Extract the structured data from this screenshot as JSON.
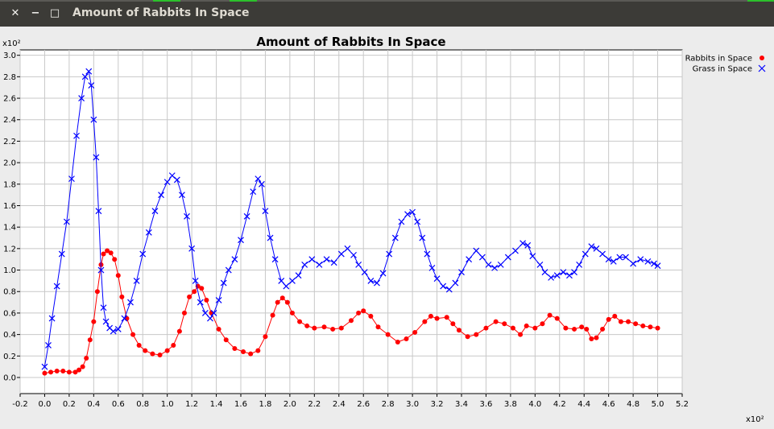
{
  "window": {
    "title": "Amount of Rabbits In Space",
    "close_glyph": "✕",
    "minimize_glyph": "−",
    "maximize_glyph": "□"
  },
  "chart_data": {
    "type": "line",
    "title": "Amount of Rabbits In Space",
    "x_multiplier_label": "x10²",
    "y_multiplier_label": "x10²",
    "xlim": [
      -0.2,
      5.2
    ],
    "ylim": [
      -0.15,
      3.05
    ],
    "xticks": [
      "-0.2",
      "0.0",
      "0.2",
      "0.4",
      "0.6",
      "0.8",
      "1.0",
      "1.2",
      "1.4",
      "1.6",
      "1.8",
      "2.0",
      "2.2",
      "2.4",
      "2.6",
      "2.8",
      "3.0",
      "3.2",
      "3.4",
      "3.6",
      "3.8",
      "4.0",
      "4.2",
      "4.4",
      "4.6",
      "4.8",
      "5.0",
      "5.2"
    ],
    "yticks": [
      "0.0",
      "0.2",
      "0.4",
      "0.6",
      "0.8",
      "1.0",
      "1.2",
      "1.4",
      "1.6",
      "1.8",
      "2.0",
      "2.2",
      "2.4",
      "2.6",
      "2.8",
      "3.0"
    ],
    "grid": true,
    "legend_position": "top-right",
    "series": [
      {
        "name": "Rabbits in Space",
        "marker": "circle",
        "color": "#ff0000",
        "points": [
          [
            0,
            0.04
          ],
          [
            0.05,
            0.05
          ],
          [
            0.1,
            0.06
          ],
          [
            0.15,
            0.06
          ],
          [
            0.2,
            0.05
          ],
          [
            0.25,
            0.05
          ],
          [
            0.28,
            0.07
          ],
          [
            0.31,
            0.1
          ],
          [
            0.34,
            0.18
          ],
          [
            0.37,
            0.35
          ],
          [
            0.4,
            0.52
          ],
          [
            0.43,
            0.8
          ],
          [
            0.46,
            1.05
          ],
          [
            0.48,
            1.15
          ],
          [
            0.51,
            1.18
          ],
          [
            0.54,
            1.16
          ],
          [
            0.57,
            1.1
          ],
          [
            0.6,
            0.95
          ],
          [
            0.63,
            0.75
          ],
          [
            0.67,
            0.55
          ],
          [
            0.72,
            0.4
          ],
          [
            0.77,
            0.3
          ],
          [
            0.82,
            0.25
          ],
          [
            0.88,
            0.22
          ],
          [
            0.94,
            0.21
          ],
          [
            1.0,
            0.25
          ],
          [
            1.05,
            0.3
          ],
          [
            1.1,
            0.43
          ],
          [
            1.14,
            0.6
          ],
          [
            1.18,
            0.75
          ],
          [
            1.22,
            0.8
          ],
          [
            1.25,
            0.85
          ],
          [
            1.28,
            0.83
          ],
          [
            1.32,
            0.72
          ],
          [
            1.36,
            0.6
          ],
          [
            1.42,
            0.45
          ],
          [
            1.48,
            0.35
          ],
          [
            1.55,
            0.27
          ],
          [
            1.62,
            0.24
          ],
          [
            1.68,
            0.22
          ],
          [
            1.74,
            0.25
          ],
          [
            1.8,
            0.38
          ],
          [
            1.86,
            0.58
          ],
          [
            1.9,
            0.7
          ],
          [
            1.94,
            0.74
          ],
          [
            1.98,
            0.7
          ],
          [
            2.02,
            0.6
          ],
          [
            2.08,
            0.52
          ],
          [
            2.14,
            0.48
          ],
          [
            2.2,
            0.46
          ],
          [
            2.28,
            0.47
          ],
          [
            2.35,
            0.45
          ],
          [
            2.42,
            0.46
          ],
          [
            2.5,
            0.53
          ],
          [
            2.56,
            0.6
          ],
          [
            2.6,
            0.62
          ],
          [
            2.66,
            0.57
          ],
          [
            2.72,
            0.47
          ],
          [
            2.8,
            0.4
          ],
          [
            2.88,
            0.33
          ],
          [
            2.95,
            0.36
          ],
          [
            3.02,
            0.42
          ],
          [
            3.1,
            0.52
          ],
          [
            3.15,
            0.57
          ],
          [
            3.2,
            0.55
          ],
          [
            3.28,
            0.56
          ],
          [
            3.33,
            0.5
          ],
          [
            3.38,
            0.44
          ],
          [
            3.45,
            0.38
          ],
          [
            3.52,
            0.4
          ],
          [
            3.6,
            0.46
          ],
          [
            3.68,
            0.52
          ],
          [
            3.75,
            0.5
          ],
          [
            3.82,
            0.46
          ],
          [
            3.88,
            0.4
          ],
          [
            3.93,
            0.48
          ],
          [
            4.0,
            0.46
          ],
          [
            4.06,
            0.5
          ],
          [
            4.12,
            0.58
          ],
          [
            4.18,
            0.55
          ],
          [
            4.25,
            0.46
          ],
          [
            4.32,
            0.45
          ],
          [
            4.38,
            0.47
          ],
          [
            4.42,
            0.45
          ],
          [
            4.46,
            0.36
          ],
          [
            4.5,
            0.37
          ],
          [
            4.55,
            0.45
          ],
          [
            4.6,
            0.54
          ],
          [
            4.65,
            0.57
          ],
          [
            4.7,
            0.52
          ],
          [
            4.76,
            0.52
          ],
          [
            4.82,
            0.5
          ],
          [
            4.88,
            0.48
          ],
          [
            4.94,
            0.47
          ],
          [
            5.0,
            0.46
          ]
        ]
      },
      {
        "name": "Grass in Space",
        "marker": "cross",
        "color": "#0000ff",
        "points": [
          [
            0,
            0.1
          ],
          [
            0.03,
            0.3
          ],
          [
            0.06,
            0.55
          ],
          [
            0.1,
            0.85
          ],
          [
            0.14,
            1.15
          ],
          [
            0.18,
            1.45
          ],
          [
            0.22,
            1.85
          ],
          [
            0.26,
            2.25
          ],
          [
            0.3,
            2.6
          ],
          [
            0.33,
            2.8
          ],
          [
            0.36,
            2.85
          ],
          [
            0.38,
            2.72
          ],
          [
            0.4,
            2.4
          ],
          [
            0.42,
            2.05
          ],
          [
            0.44,
            1.55
          ],
          [
            0.46,
            1.0
          ],
          [
            0.48,
            0.65
          ],
          [
            0.5,
            0.52
          ],
          [
            0.53,
            0.46
          ],
          [
            0.56,
            0.43
          ],
          [
            0.6,
            0.45
          ],
          [
            0.65,
            0.55
          ],
          [
            0.7,
            0.7
          ],
          [
            0.75,
            0.9
          ],
          [
            0.8,
            1.15
          ],
          [
            0.85,
            1.35
          ],
          [
            0.9,
            1.55
          ],
          [
            0.95,
            1.7
          ],
          [
            1.0,
            1.82
          ],
          [
            1.04,
            1.88
          ],
          [
            1.08,
            1.84
          ],
          [
            1.12,
            1.7
          ],
          [
            1.16,
            1.5
          ],
          [
            1.2,
            1.2
          ],
          [
            1.23,
            0.9
          ],
          [
            1.27,
            0.7
          ],
          [
            1.31,
            0.6
          ],
          [
            1.35,
            0.55
          ],
          [
            1.38,
            0.6
          ],
          [
            1.42,
            0.72
          ],
          [
            1.46,
            0.88
          ],
          [
            1.5,
            1.0
          ],
          [
            1.55,
            1.1
          ],
          [
            1.6,
            1.28
          ],
          [
            1.65,
            1.5
          ],
          [
            1.7,
            1.73
          ],
          [
            1.74,
            1.85
          ],
          [
            1.77,
            1.8
          ],
          [
            1.8,
            1.55
          ],
          [
            1.84,
            1.3
          ],
          [
            1.88,
            1.1
          ],
          [
            1.93,
            0.9
          ],
          [
            1.97,
            0.85
          ],
          [
            2.02,
            0.9
          ],
          [
            2.07,
            0.95
          ],
          [
            2.12,
            1.05
          ],
          [
            2.18,
            1.1
          ],
          [
            2.24,
            1.05
          ],
          [
            2.3,
            1.1
          ],
          [
            2.36,
            1.07
          ],
          [
            2.42,
            1.15
          ],
          [
            2.47,
            1.2
          ],
          [
            2.52,
            1.14
          ],
          [
            2.56,
            1.05
          ],
          [
            2.61,
            0.98
          ],
          [
            2.66,
            0.9
          ],
          [
            2.71,
            0.88
          ],
          [
            2.76,
            0.97
          ],
          [
            2.81,
            1.15
          ],
          [
            2.86,
            1.3
          ],
          [
            2.91,
            1.45
          ],
          [
            2.96,
            1.52
          ],
          [
            3.0,
            1.54
          ],
          [
            3.04,
            1.45
          ],
          [
            3.08,
            1.3
          ],
          [
            3.12,
            1.15
          ],
          [
            3.16,
            1.02
          ],
          [
            3.2,
            0.92
          ],
          [
            3.25,
            0.85
          ],
          [
            3.3,
            0.82
          ],
          [
            3.35,
            0.88
          ],
          [
            3.4,
            0.98
          ],
          [
            3.46,
            1.1
          ],
          [
            3.52,
            1.18
          ],
          [
            3.57,
            1.12
          ],
          [
            3.62,
            1.05
          ],
          [
            3.67,
            1.02
          ],
          [
            3.72,
            1.05
          ],
          [
            3.78,
            1.12
          ],
          [
            3.84,
            1.18
          ],
          [
            3.9,
            1.25
          ],
          [
            3.94,
            1.23
          ],
          [
            3.98,
            1.13
          ],
          [
            4.04,
            1.05
          ],
          [
            4.08,
            0.98
          ],
          [
            4.13,
            0.93
          ],
          [
            4.18,
            0.95
          ],
          [
            4.23,
            0.98
          ],
          [
            4.28,
            0.95
          ],
          [
            4.32,
            0.98
          ],
          [
            4.36,
            1.05
          ],
          [
            4.41,
            1.15
          ],
          [
            4.46,
            1.22
          ],
          [
            4.5,
            1.2
          ],
          [
            4.55,
            1.15
          ],
          [
            4.6,
            1.1
          ],
          [
            4.64,
            1.08
          ],
          [
            4.69,
            1.12
          ],
          [
            4.74,
            1.12
          ],
          [
            4.8,
            1.06
          ],
          [
            4.86,
            1.1
          ],
          [
            4.92,
            1.08
          ],
          [
            4.97,
            1.06
          ],
          [
            5.0,
            1.04
          ]
        ]
      }
    ]
  }
}
